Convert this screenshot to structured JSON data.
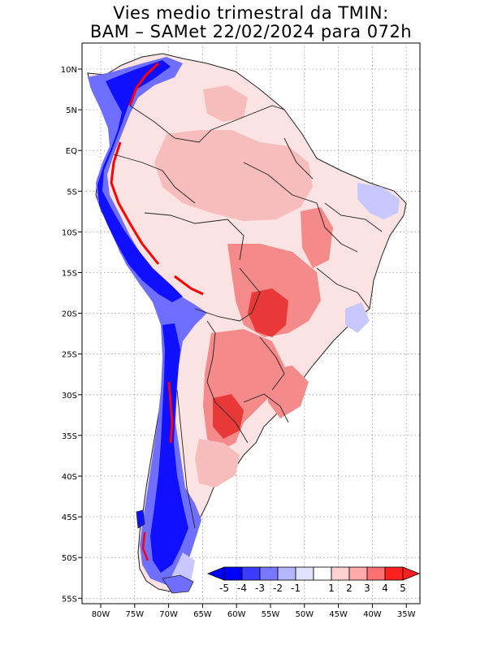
{
  "title": {
    "line1": "Vies medio trimestral da TMIN:",
    "line2": "BAM – SAMet 22/02/2024  para 072h"
  },
  "axes": {
    "lon_labels": [
      "80W",
      "75W",
      "70W",
      "65W",
      "60W",
      "55W",
      "50W",
      "45W",
      "40W",
      "35W"
    ],
    "lat_labels": [
      "10N",
      "5N",
      "EQ",
      "5S",
      "10S",
      "15S",
      "20S",
      "25S",
      "30S",
      "35S",
      "40S",
      "45S",
      "50S",
      "55S"
    ]
  },
  "colorbar": {
    "labels": [
      "-5",
      "-4",
      "-3",
      "-2",
      "-1",
      "1",
      "2",
      "3",
      "4",
      "5"
    ],
    "colors": [
      "#0000ff",
      "#3c3cff",
      "#7878ff",
      "#b4b4ff",
      "#e0e0ff",
      "#ffffff",
      "#ffd2d2",
      "#ffaaaa",
      "#ff7070",
      "#ff2020"
    ]
  },
  "colors": {
    "land_base": "#fbe3e3",
    "warm_light": "#f7bcbc",
    "warm_mid": "#f48a8a",
    "warm_dark": "#e83838",
    "cold_light": "#c8c8ff",
    "cold_mid": "#6f6fff",
    "cold_dark": "#1010ff",
    "hot": "#ff0000"
  }
}
